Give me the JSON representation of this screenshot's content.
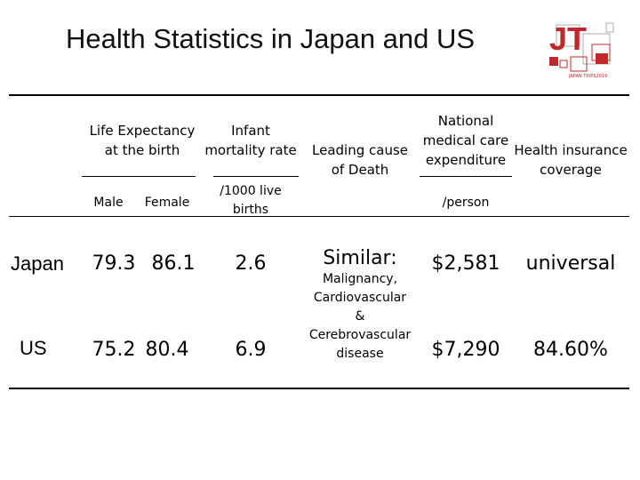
{
  "slide": {
    "title": "Health Statistics in Japan and US",
    "logo": {
      "text": "JT",
      "caption": "JAPAN TRIPS2019",
      "accent_color": "#c0282d"
    }
  },
  "table": {
    "headers": {
      "life_expectancy": [
        "Life Expectancy",
        "at the birth"
      ],
      "infant_mortality": [
        "Infant",
        "mortality rate"
      ],
      "leading_cause": [
        "Leading cause",
        "of Death"
      ],
      "medical_expenditure": [
        "National",
        "medical care",
        "expenditure"
      ],
      "insurance": [
        "Health insurance",
        "coverage"
      ]
    },
    "subheaders": {
      "male": "Male",
      "female": "Female",
      "infant_unit": [
        "/1000 live",
        "births"
      ],
      "expenditure_unit": "/person"
    },
    "rows": [
      {
        "country": "Japan",
        "male": "79.3",
        "female": "86.1",
        "infant_mortality": "2.6",
        "expenditure": "$2,581",
        "insurance": "universal"
      },
      {
        "country": "US",
        "male": "75.2",
        "female": "80.4",
        "infant_mortality": "6.9",
        "expenditure": "$7,290",
        "insurance": "84.60%"
      }
    ],
    "leading_cause": {
      "heading": "Similar:",
      "lines": [
        "Malignancy,",
        "Cardiovascular",
        "&",
        "Cerebrovascular",
        "disease"
      ]
    }
  }
}
